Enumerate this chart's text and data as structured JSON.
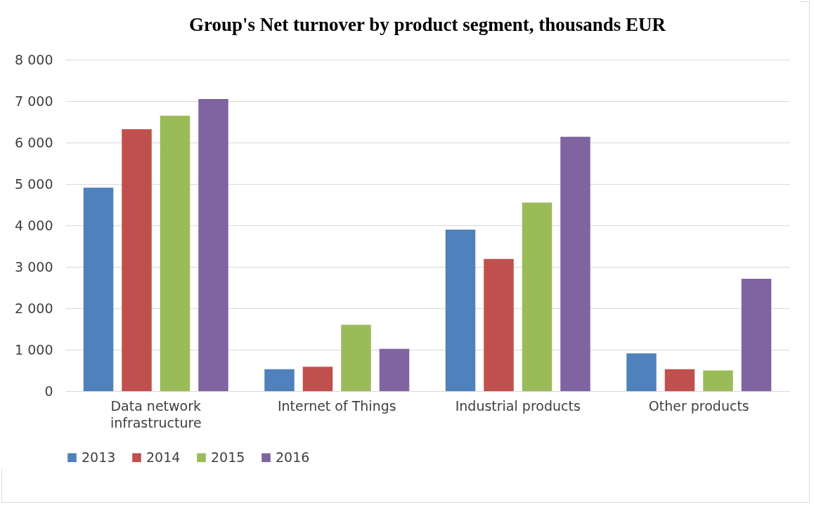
{
  "chart_data": {
    "type": "bar",
    "title": "Group's Net turnover by product segment, thousands EUR",
    "categories": [
      "Data network\ninfrastructure",
      "Internet of Things",
      "Industrial products",
      "Other products"
    ],
    "series": [
      {
        "name": "2013",
        "color": "#4f81bd",
        "values": [
          4910,
          530,
          3900,
          910
        ]
      },
      {
        "name": "2014",
        "color": "#c0504d",
        "values": [
          6320,
          590,
          3190,
          530
        ]
      },
      {
        "name": "2015",
        "color": "#9bbb59",
        "values": [
          6650,
          1600,
          4550,
          500
        ]
      },
      {
        "name": "2016",
        "color": "#8064a2",
        "values": [
          7050,
          1020,
          6140,
          2710
        ]
      }
    ],
    "ylim": [
      0,
      8000
    ],
    "yticks": [
      {
        "value": 0,
        "label": "0"
      },
      {
        "value": 1000,
        "label": "1 000"
      },
      {
        "value": 2000,
        "label": "2 000"
      },
      {
        "value": 3000,
        "label": "3 000"
      },
      {
        "value": 4000,
        "label": "4 000"
      },
      {
        "value": 5000,
        "label": "5 000"
      },
      {
        "value": 6000,
        "label": "6 000"
      },
      {
        "value": 7000,
        "label": "7 000"
      },
      {
        "value": 8000,
        "label": "8 000"
      }
    ],
    "grid": "y",
    "legend": "bottom"
  }
}
